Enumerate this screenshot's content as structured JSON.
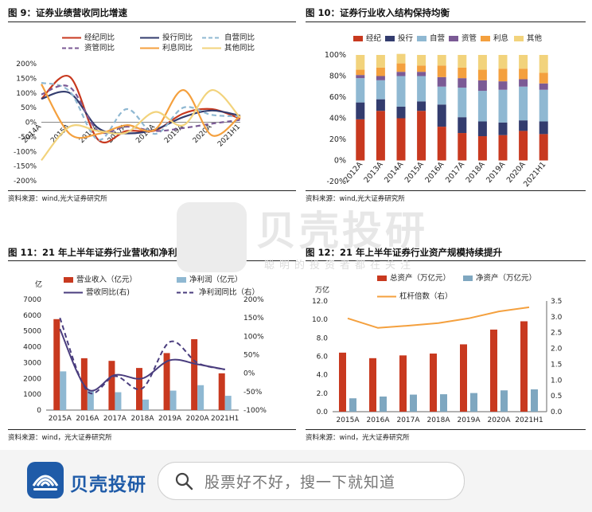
{
  "watermark": {
    "brand": "贝壳投研",
    "slogan": "聪明的投资者都在关注"
  },
  "bottom_bar": {
    "brand_name": "贝壳投研",
    "search_placeholder": "股票好不好，搜一下就知道"
  },
  "colors": {
    "red": "#c8391f",
    "navy": "#333c6e",
    "lightblue": "#8fb8d2",
    "purple": "#7b5a95",
    "orange": "#f4a03e",
    "yellow": "#f2d37c",
    "darkpurple": "#4a3d7e",
    "steel": "#7fa7c0",
    "darkred": "#8e2f3b",
    "lavender": "#9e85bf"
  },
  "chart_data": [
    {
      "id": "fig9",
      "type": "line",
      "title": "图 9：证券业绩营收同比增速",
      "source": "资料来源：wind,光大证券研究所",
      "categories": [
        "2014A",
        "2015A",
        "2016A",
        "2017A",
        "2018A",
        "2019A",
        "2020A",
        "2021H1"
      ],
      "ylim": [
        -200,
        200
      ],
      "yticks": [
        "200%",
        "150%",
        "100%",
        "50%",
        "0%",
        "-50%",
        "-100%",
        "-150%",
        "-200%"
      ],
      "series": [
        {
          "name": "经纪同比",
          "color": "#c8391f",
          "dash": false,
          "values": [
            80,
            155,
            -60,
            -30,
            -28,
            30,
            45,
            12
          ]
        },
        {
          "name": "投行同比",
          "color": "#333c6e",
          "dash": false,
          "values": [
            80,
            100,
            -20,
            -38,
            -25,
            18,
            40,
            22
          ]
        },
        {
          "name": "自营同比",
          "color": "#8fb8d2",
          "dash": true,
          "values": [
            135,
            105,
            -60,
            45,
            -40,
            50,
            25,
            20
          ]
        },
        {
          "name": "资管同比",
          "color": "#7b5a95",
          "dash": true,
          "values": [
            95,
            120,
            -30,
            -15,
            -30,
            -20,
            -5,
            8
          ]
        },
        {
          "name": "利息同比",
          "color": "#f4a03e",
          "dash": false,
          "values": [
            130,
            -40,
            -40,
            -10,
            -25,
            110,
            -45,
            22
          ]
        },
        {
          "name": "其他同比",
          "color": "#f2d37c",
          "dash": false,
          "values": [
            -130,
            -15,
            -30,
            -35,
            35,
            -10,
            110,
            15
          ]
        }
      ]
    },
    {
      "id": "fig10",
      "type": "bar",
      "title": "图 10：证券行业收入结构保持均衡",
      "source": "资料来源：wind,光大证券研究所",
      "categories": [
        "2012A",
        "2013A",
        "2014A",
        "2015A",
        "2016A",
        "2017A",
        "2018A",
        "2019A",
        "2020A",
        "2021H1"
      ],
      "ylim": [
        -20,
        100
      ],
      "yticks": [
        "100%",
        "80%",
        "60%",
        "40%",
        "20%",
        "0%",
        "-20%"
      ],
      "series": [
        {
          "name": "经纪",
          "color": "#c8391f",
          "values": [
            39,
            47,
            40,
            47,
            32,
            26,
            23,
            24,
            28,
            25
          ]
        },
        {
          "name": "投行",
          "color": "#333c6e",
          "values": [
            16,
            11,
            11,
            9,
            21,
            15,
            14,
            12,
            10,
            12
          ]
        },
        {
          "name": "自营",
          "color": "#8fb8d2",
          "values": [
            23,
            18,
            29,
            24,
            17,
            28,
            29,
            31,
            32,
            30
          ]
        },
        {
          "name": "资管",
          "color": "#7b5a95",
          "values": [
            3,
            4,
            4,
            4,
            9,
            9,
            10,
            8,
            7,
            6
          ]
        },
        {
          "name": "利息",
          "color": "#f4a03e",
          "values": [
            5,
            8,
            8,
            6,
            11,
            10,
            10,
            12,
            10,
            10
          ]
        },
        {
          "name": "其他",
          "color": "#f2d37c",
          "values": [
            14,
            12,
            9,
            10,
            10,
            12,
            14,
            13,
            13,
            17
          ]
        }
      ]
    },
    {
      "id": "fig11",
      "type": "bar",
      "title": "图 11：21 年上半年证券行业营收和净利持续增长",
      "source": "资料来源：wind，光大证券研究所",
      "unit_left": "亿",
      "categories": [
        "2015A",
        "2016A",
        "2017A",
        "2018A",
        "2019A",
        "2020A",
        "2021H1"
      ],
      "ylim_left": [
        0,
        7000
      ],
      "yticks_left": [
        "7000",
        "6000",
        "5000",
        "4000",
        "3000",
        "2000",
        "1000",
        "0"
      ],
      "ylim_right": [
        -100,
        200
      ],
      "yticks_right": [
        "200%",
        "150%",
        "100%",
        "50%",
        "0%",
        "-50%",
        "-100%"
      ],
      "series": [
        {
          "name": "营业收入（亿元）",
          "color": "#c8391f",
          "axis": "left",
          "kind": "bar",
          "values": [
            5752,
            3280,
            3113,
            2663,
            3605,
            4485,
            2325
          ]
        },
        {
          "name": "净利润（亿元）",
          "color": "#8fb8d2",
          "axis": "left",
          "kind": "bar",
          "values": [
            2448,
            1234,
            1130,
            666,
            1231,
            1575,
            903
          ]
        },
        {
          "name": "营收同比(右)",
          "color": "#4a3d7e",
          "axis": "right",
          "kind": "line",
          "dash": false,
          "values": [
            120,
            -43,
            -5,
            -14,
            35,
            24,
            10
          ]
        },
        {
          "name": "净利润同比（右）",
          "color": "#4a3d7e",
          "axis": "right",
          "kind": "line",
          "dash": true,
          "values": [
            150,
            -49,
            -8,
            -41,
            85,
            28,
            10
          ]
        }
      ]
    },
    {
      "id": "fig12",
      "type": "bar",
      "title": "图 12：21 年上半年证券行业资产规模持续提升",
      "source": "资料来源：wind，光大证券研究所",
      "unit_left": "万亿",
      "categories": [
        "2015A",
        "2016A",
        "2017A",
        "2018A",
        "2019A",
        "2020A",
        "2021H1"
      ],
      "ylim_left": [
        0,
        12
      ],
      "yticks_left": [
        "12.0",
        "10.0",
        "8.0",
        "6.0",
        "4.0",
        "2.0",
        "0.0"
      ],
      "ylim_right": [
        0,
        3.5
      ],
      "yticks_right": [
        "3.5",
        "3.0",
        "2.5",
        "2.0",
        "1.5",
        "1.0",
        "0.5",
        "0.0"
      ],
      "series": [
        {
          "name": "总资产（万亿元）",
          "color": "#c8391f",
          "axis": "left",
          "kind": "bar",
          "values": [
            6.4,
            5.8,
            6.1,
            6.3,
            7.3,
            8.9,
            9.8
          ]
        },
        {
          "name": "净资产（万亿元）",
          "color": "#7fa7c0",
          "axis": "left",
          "kind": "bar",
          "values": [
            1.45,
            1.64,
            1.85,
            1.89,
            2.02,
            2.31,
            2.42
          ]
        },
        {
          "name": "杠杆倍数（右）",
          "color": "#f4a03e",
          "axis": "right",
          "kind": "line",
          "dash": false,
          "values": [
            2.95,
            2.65,
            2.72,
            2.8,
            2.95,
            3.17,
            3.3
          ]
        }
      ]
    }
  ]
}
